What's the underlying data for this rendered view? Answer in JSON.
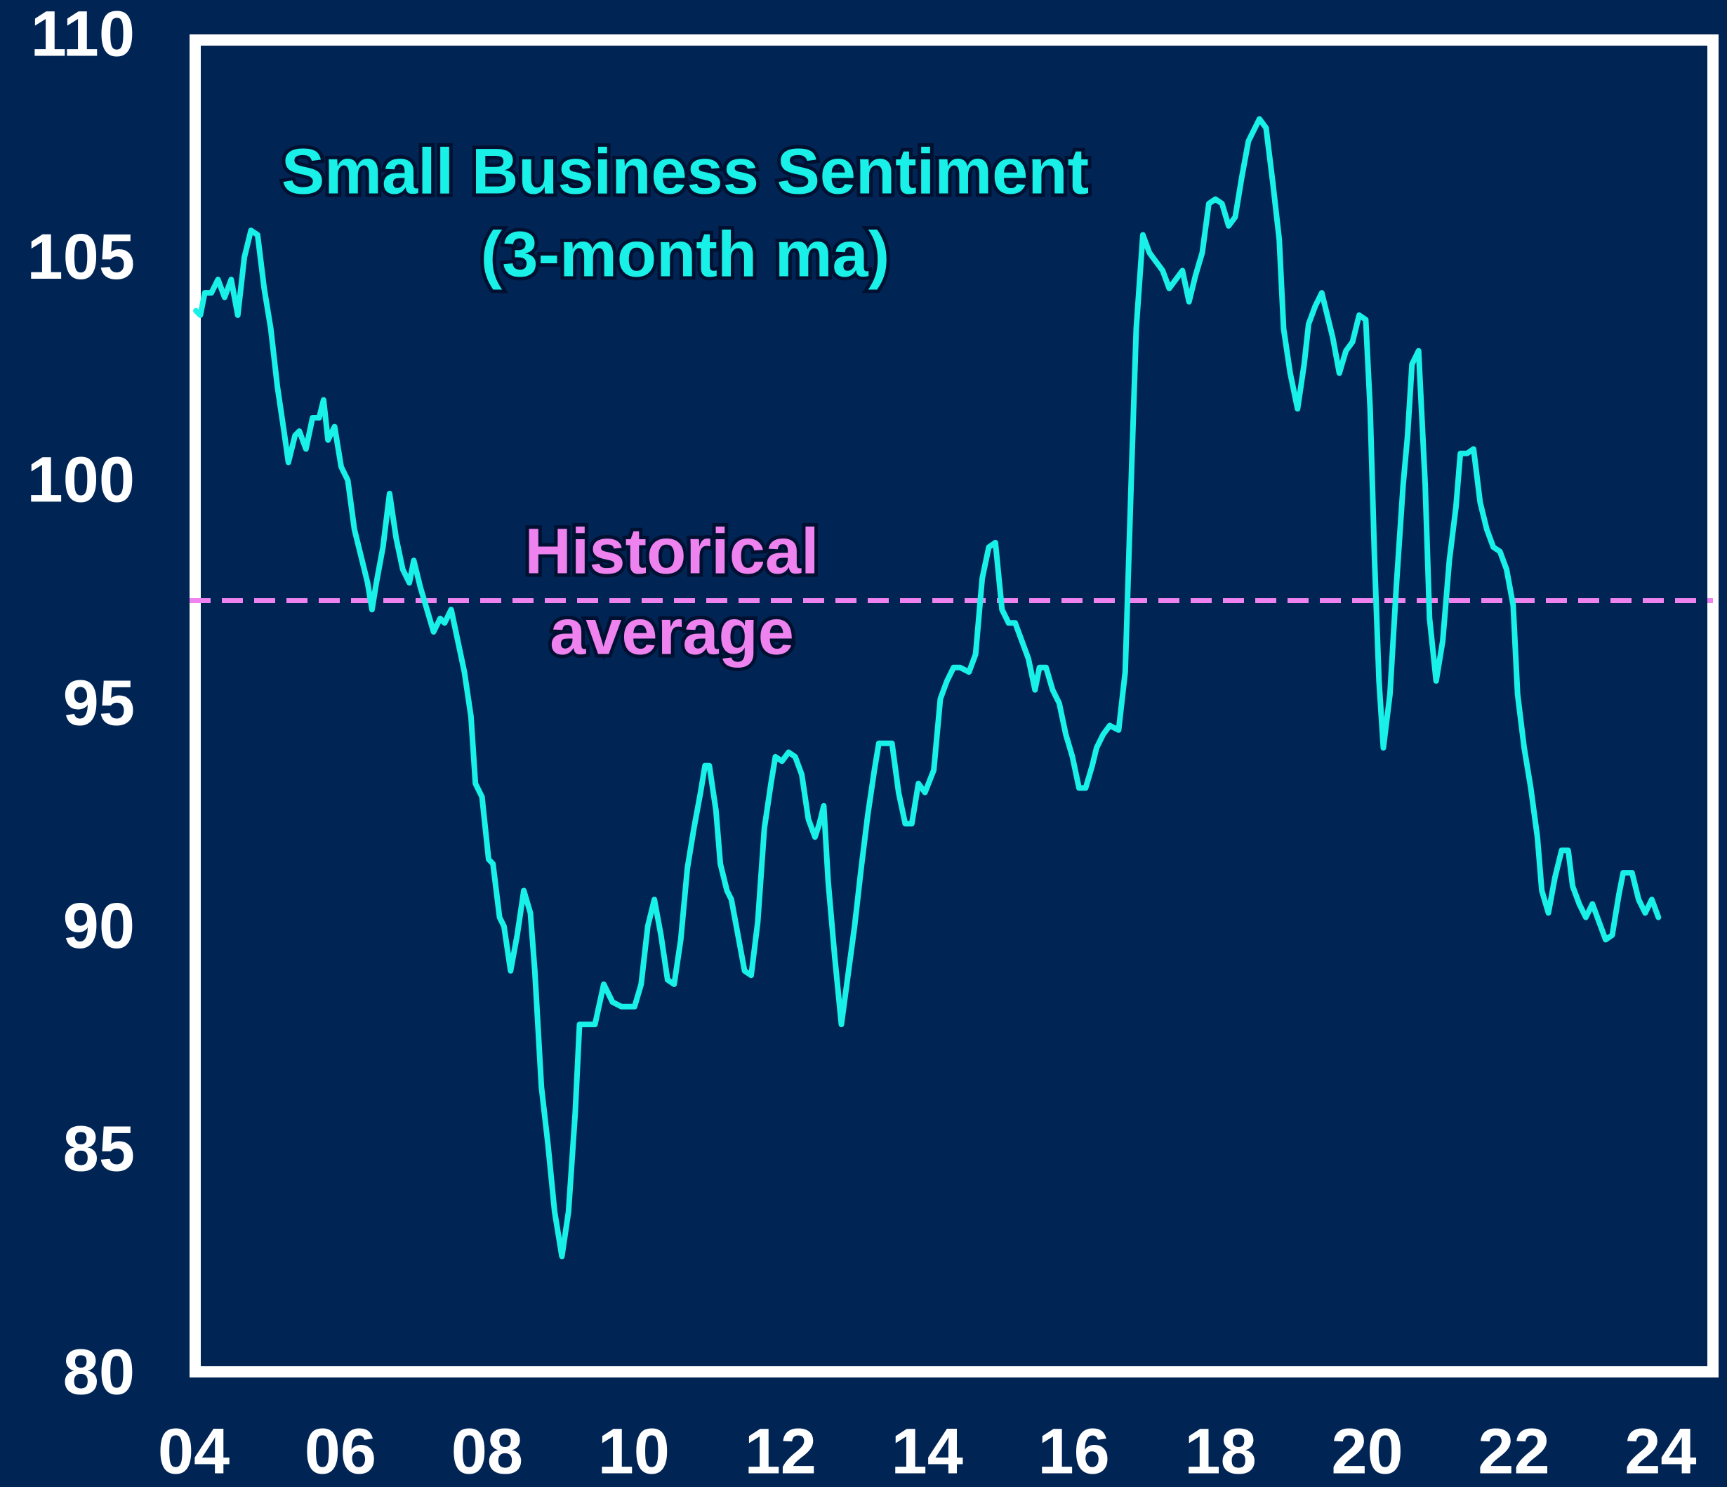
{
  "chart_data": {
    "type": "line",
    "title": "Small Business Sentiment",
    "subtitle": "(3-month ma)",
    "background": "#002454",
    "x": [
      2004.03,
      2004.09,
      2004.15,
      2004.24,
      2004.33,
      2004.42,
      2004.51,
      2004.6,
      2004.69,
      2004.78,
      2004.87,
      2004.96,
      2005.05,
      2005.14,
      2005.23,
      2005.29,
      2005.38,
      2005.44,
      2005.53,
      2005.62,
      2005.71,
      2005.77,
      2005.83,
      2005.92,
      2006.01,
      2006.1,
      2006.19,
      2006.28,
      2006.37,
      2006.43,
      2006.49,
      2006.58,
      2006.67,
      2006.76,
      2006.85,
      2006.94,
      2007.0,
      2007.09,
      2007.18,
      2007.27,
      2007.36,
      2007.42,
      2007.51,
      2007.6,
      2007.69,
      2007.78,
      2007.84,
      2007.93,
      2008.02,
      2008.08,
      2008.17,
      2008.23,
      2008.32,
      2008.41,
      2008.5,
      2008.59,
      2008.65,
      2008.74,
      2008.83,
      2008.92,
      2009.02,
      2009.11,
      2009.2,
      2009.26,
      2009.35,
      2009.47,
      2009.59,
      2009.71,
      2009.83,
      2009.92,
      2010.01,
      2010.1,
      2010.19,
      2010.28,
      2010.37,
      2010.46,
      2010.55,
      2010.64,
      2010.73,
      2010.82,
      2010.91,
      2010.97,
      2011.03,
      2011.12,
      2011.18,
      2011.27,
      2011.33,
      2011.42,
      2011.51,
      2011.6,
      2011.69,
      2011.78,
      2011.87,
      2011.93,
      2012.02,
      2012.11,
      2012.2,
      2012.29,
      2012.38,
      2012.47,
      2012.53,
      2012.59,
      2012.65,
      2012.74,
      2012.83,
      2012.92,
      2013.01,
      2013.1,
      2013.19,
      2013.28,
      2013.34,
      2013.52,
      2013.61,
      2013.7,
      2013.79,
      2013.88,
      2013.97,
      2014.09,
      2014.18,
      2014.27,
      2014.36,
      2014.45,
      2014.57,
      2014.66,
      2014.75,
      2014.84,
      2014.93,
      2015.02,
      2015.11,
      2015.2,
      2015.29,
      2015.38,
      2015.47,
      2015.53,
      2015.62,
      2015.71,
      2015.8,
      2015.89,
      2015.98,
      2016.07,
      2016.16,
      2016.25,
      2016.31,
      2016.4,
      2016.49,
      2016.61,
      2016.7,
      2016.79,
      2016.85,
      2016.94,
      2017.03,
      2017.12,
      2017.21,
      2017.3,
      2017.39,
      2017.48,
      2017.57,
      2017.66,
      2017.75,
      2017.84,
      2017.93,
      2018.02,
      2018.11,
      2018.2,
      2018.29,
      2018.38,
      2018.47,
      2018.53,
      2018.62,
      2018.71,
      2018.8,
      2018.86,
      2018.95,
      2019.05,
      2019.14,
      2019.2,
      2019.29,
      2019.38,
      2019.44,
      2019.53,
      2019.62,
      2019.71,
      2019.8,
      2019.89,
      2019.98,
      2020.04,
      2020.1,
      2020.16,
      2020.22,
      2020.31,
      2020.4,
      2020.49,
      2020.55,
      2020.61,
      2020.7,
      2020.79,
      2020.85,
      2020.94,
      2021.03,
      2021.12,
      2021.21,
      2021.27,
      2021.36,
      2021.45,
      2021.54,
      2021.63,
      2021.72,
      2021.81,
      2021.9,
      2021.99,
      2022.05,
      2022.14,
      2022.23,
      2022.32,
      2022.38,
      2022.47,
      2022.56,
      2022.65,
      2022.74,
      2022.8,
      2022.89,
      2022.98,
      2023.07,
      2023.16,
      2023.25,
      2023.34,
      2023.43,
      2023.49,
      2023.61,
      2023.7,
      2023.79,
      2023.88,
      2023.97
    ],
    "series": [
      {
        "name": "Small Business Sentiment",
        "color": "#19f0e8",
        "values": [
          103.9,
          103.8,
          104.3,
          104.3,
          104.6,
          104.2,
          104.6,
          103.8,
          105.1,
          105.7,
          105.6,
          104.4,
          103.5,
          102.2,
          101.2,
          100.5,
          101.1,
          101.2,
          100.8,
          101.5,
          101.5,
          101.9,
          101.0,
          101.3,
          100.4,
          100.1,
          99.0,
          98.4,
          97.8,
          97.2,
          97.8,
          98.6,
          99.8,
          98.8,
          98.1,
          97.8,
          98.3,
          97.7,
          97.2,
          96.7,
          97.0,
          96.9,
          97.2,
          96.5,
          95.8,
          94.8,
          93.3,
          93.0,
          91.6,
          91.5,
          90.3,
          90.1,
          89.1,
          89.9,
          90.9,
          90.4,
          89.1,
          86.5,
          85.2,
          83.7,
          82.7,
          83.7,
          85.9,
          87.9,
          87.9,
          87.9,
          88.8,
          88.4,
          88.3,
          88.3,
          88.3,
          88.8,
          90.1,
          90.7,
          89.9,
          88.9,
          88.8,
          89.8,
          91.4,
          92.3,
          93.1,
          93.7,
          93.7,
          92.7,
          91.5,
          90.9,
          90.7,
          89.9,
          89.1,
          89.0,
          90.2,
          92.3,
          93.3,
          93.9,
          93.8,
          94.0,
          93.9,
          93.5,
          92.5,
          92.1,
          92.4,
          92.8,
          91.1,
          89.4,
          87.9,
          89.0,
          90.1,
          91.4,
          92.6,
          93.6,
          94.2,
          94.2,
          93.1,
          92.4,
          92.4,
          93.3,
          93.1,
          93.6,
          95.2,
          95.6,
          95.9,
          95.9,
          95.8,
          96.2,
          97.9,
          98.6,
          98.7,
          97.2,
          96.9,
          96.9,
          96.5,
          96.1,
          95.4,
          95.9,
          95.9,
          95.4,
          95.1,
          94.4,
          93.9,
          93.2,
          93.2,
          93.7,
          94.1,
          94.4,
          94.6,
          94.5,
          95.8,
          100.5,
          103.5,
          105.6,
          105.2,
          105.0,
          104.8,
          104.4,
          104.6,
          104.8,
          104.1,
          104.7,
          105.2,
          106.3,
          106.4,
          106.3,
          105.8,
          106.0,
          106.9,
          107.7,
          108.0,
          108.2,
          108.0,
          106.8,
          105.5,
          103.5,
          102.5,
          101.7,
          102.7,
          103.6,
          104.0,
          104.3,
          103.9,
          103.3,
          102.5,
          103.0,
          103.2,
          103.8,
          103.7,
          101.7,
          98.3,
          95.6,
          94.1,
          95.3,
          97.8,
          100.0,
          101.1,
          102.7,
          103.0,
          100.0,
          97.0,
          95.6,
          96.5,
          98.3,
          99.5,
          100.7,
          100.7,
          100.8,
          99.6,
          99.0,
          98.6,
          98.5,
          98.1,
          97.3,
          95.3,
          94.1,
          93.2,
          92.1,
          90.9,
          90.4,
          91.2,
          91.8,
          91.8,
          91.0,
          90.6,
          90.3,
          90.6,
          90.2,
          89.8,
          89.9,
          90.8,
          91.3,
          91.3,
          90.7,
          90.4,
          90.7,
          90.3
        ]
      }
    ],
    "reference_line": {
      "value": 97.4,
      "label": [
        "Historical",
        "average"
      ],
      "color": "#ee82ee",
      "dashed": true
    },
    "xlim": [
      2004,
      2024.8
    ],
    "xticks": [
      {
        "value": 2004,
        "label": "04"
      },
      {
        "value": 2006,
        "label": "06"
      },
      {
        "value": 2008,
        "label": "08"
      },
      {
        "value": 2010,
        "label": "10"
      },
      {
        "value": 2012,
        "label": "12"
      },
      {
        "value": 2014,
        "label": "14"
      },
      {
        "value": 2016,
        "label": "16"
      },
      {
        "value": 2018,
        "label": "18"
      },
      {
        "value": 2020,
        "label": "20"
      },
      {
        "value": 2022,
        "label": "22"
      },
      {
        "value": 2024,
        "label": "24"
      }
    ],
    "ylim": [
      80,
      110
    ],
    "yticks": [
      80,
      85,
      90,
      95,
      100,
      105,
      110
    ],
    "grid": false
  }
}
